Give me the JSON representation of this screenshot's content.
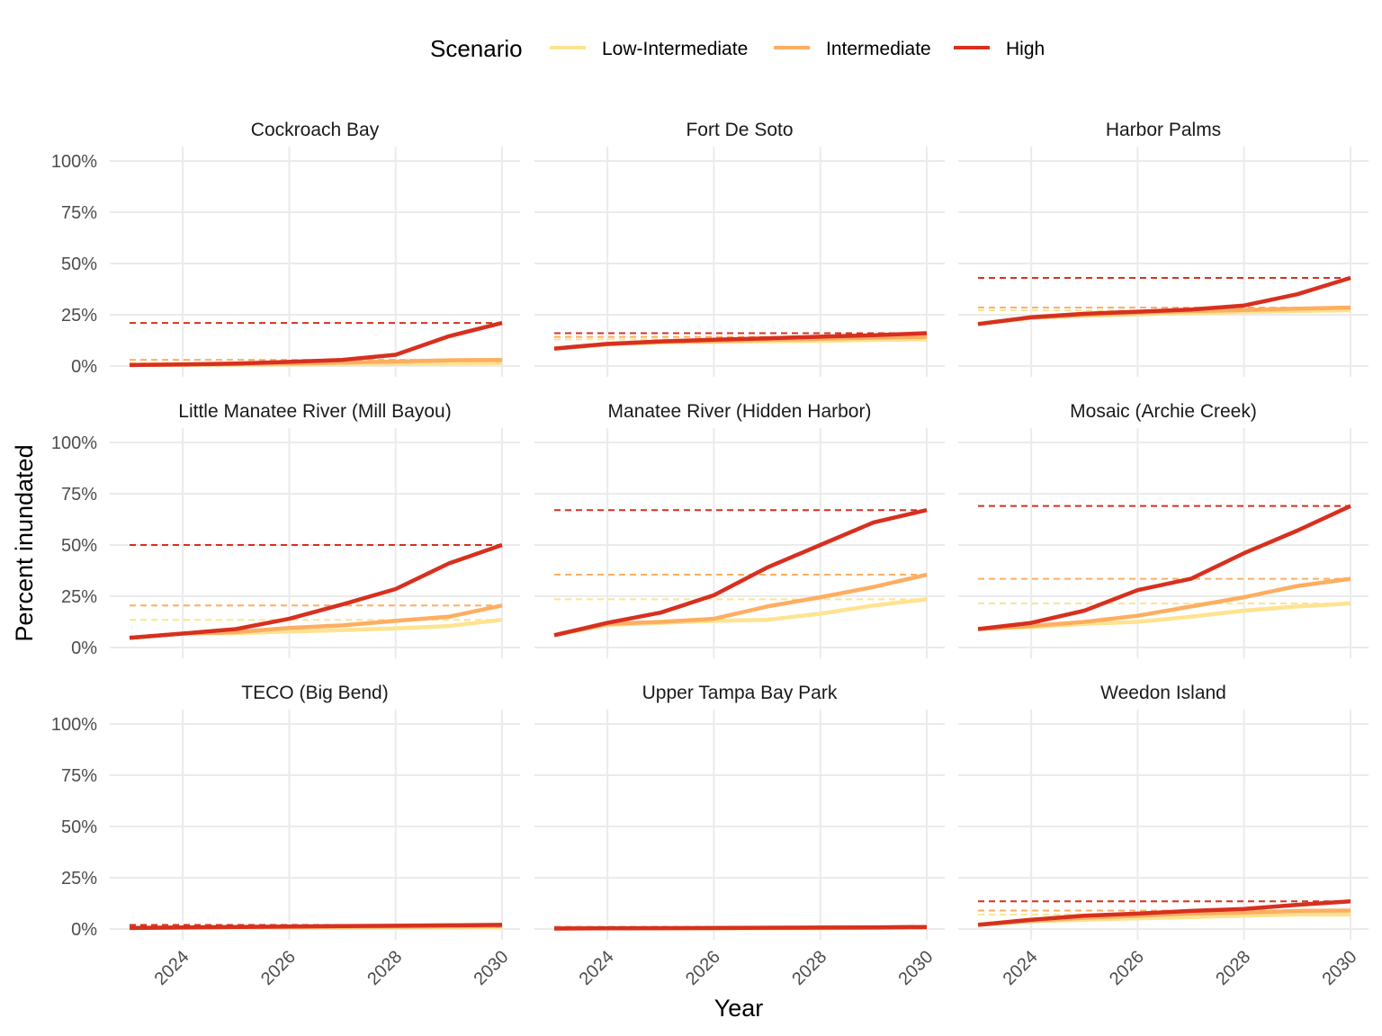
{
  "legend": {
    "title": "Scenario",
    "items": [
      {
        "label": "Low-Intermediate",
        "color": "#fee391"
      },
      {
        "label": "Intermediate",
        "color": "#fdae61"
      },
      {
        "label": "High",
        "color": "#d7301f"
      }
    ]
  },
  "chart_data": {
    "type": "line",
    "xlabel": "Year",
    "ylabel": "Percent inundated",
    "x_ticks": [
      "2024",
      "2026",
      "2028",
      "2030"
    ],
    "y_ticks": [
      "0%",
      "25%",
      "50%",
      "75%",
      "100%"
    ],
    "xlim": [
      2023,
      2030
    ],
    "ylim": [
      0,
      100
    ],
    "x": [
      2023,
      2024,
      2025,
      2026,
      2027,
      2028,
      2029,
      2030
    ],
    "grid": true,
    "legend_position": "top",
    "reference_lines": "dashed horizontal line per scenario at the 2030 value",
    "panels": [
      {
        "title": "Cockroach Bay",
        "series": [
          {
            "name": "Low-Intermediate",
            "values": [
              0.5,
              0.6,
              0.7,
              0.8,
              0.9,
              1.0,
              1.2,
              1.5
            ]
          },
          {
            "name": "Intermediate",
            "values": [
              0.5,
              0.7,
              0.9,
              1.2,
              1.7,
              2.2,
              2.8,
              3.0
            ]
          },
          {
            "name": "High",
            "values": [
              0.5,
              0.8,
              1.2,
              2.0,
              3.0,
              5.5,
              14.5,
              21.0
            ]
          }
        ]
      },
      {
        "title": "Fort De Soto",
        "series": [
          {
            "name": "Low-Intermediate",
            "values": [
              8.5,
              10.5,
              11.5,
              11.8,
              12.0,
              12.3,
              12.7,
              13.0
            ]
          },
          {
            "name": "Intermediate",
            "values": [
              8.5,
              10.6,
              11.7,
              12.2,
              12.8,
              13.3,
              13.8,
              14.2
            ]
          },
          {
            "name": "High",
            "values": [
              8.5,
              10.8,
              12.0,
              12.8,
              13.5,
              14.3,
              15.0,
              16.0
            ]
          }
        ]
      },
      {
        "title": "Harbor Palms",
        "series": [
          {
            "name": "Low-Intermediate",
            "values": [
              20.5,
              23.5,
              24.5,
              25.2,
              25.8,
              26.3,
              26.8,
              27.2
            ]
          },
          {
            "name": "Intermediate",
            "values": [
              20.5,
              23.5,
              25.0,
              26.0,
              26.8,
              27.3,
              28.0,
              28.5
            ]
          },
          {
            "name": "High",
            "values": [
              20.5,
              23.8,
              25.5,
              26.5,
              27.5,
              29.5,
              35.0,
              43.0
            ]
          }
        ]
      },
      {
        "title": "Little Manatee River (Mill Bayou)",
        "series": [
          {
            "name": "Low-Intermediate",
            "values": [
              4.7,
              6.8,
              7.0,
              7.8,
              8.5,
              9.3,
              10.5,
              13.5
            ]
          },
          {
            "name": "Intermediate",
            "values": [
              4.7,
              6.8,
              7.5,
              9.5,
              10.8,
              13.0,
              15.0,
              20.5
            ]
          },
          {
            "name": "High",
            "values": [
              4.7,
              6.8,
              9.0,
              14.0,
              21.0,
              28.5,
              41.0,
              50.0
            ]
          }
        ]
      },
      {
        "title": "Manatee River (Hidden Harbor)",
        "series": [
          {
            "name": "Low-Intermediate",
            "values": [
              6.0,
              11.0,
              12.0,
              13.0,
              13.5,
              16.5,
              20.5,
              23.5
            ]
          },
          {
            "name": "Intermediate",
            "values": [
              6.0,
              11.5,
              12.5,
              14.0,
              20.0,
              24.5,
              29.5,
              35.5
            ]
          },
          {
            "name": "High",
            "values": [
              6.0,
              12.0,
              17.0,
              25.5,
              39.0,
              50.0,
              61.0,
              67.0
            ]
          }
        ]
      },
      {
        "title": "Mosaic (Archie Creek)",
        "series": [
          {
            "name": "Low-Intermediate",
            "values": [
              9.0,
              10.0,
              11.5,
              12.5,
              15.0,
              18.0,
              20.0,
              21.5
            ]
          },
          {
            "name": "Intermediate",
            "values": [
              9.0,
              10.5,
              12.5,
              15.5,
              20.0,
              24.5,
              30.0,
              33.5
            ]
          },
          {
            "name": "High",
            "values": [
              9.0,
              12.0,
              18.0,
              28.0,
              33.5,
              46.0,
              57.0,
              69.0
            ]
          }
        ]
      },
      {
        "title": "TECO (Big Bend)",
        "series": [
          {
            "name": "Low-Intermediate",
            "values": [
              0.5,
              0.6,
              0.7,
              0.8,
              0.8,
              0.9,
              1.0,
              1.0
            ]
          },
          {
            "name": "Intermediate",
            "values": [
              0.5,
              0.7,
              0.9,
              1.0,
              1.1,
              1.2,
              1.3,
              1.5
            ]
          },
          {
            "name": "High",
            "values": [
              0.5,
              0.8,
              1.0,
              1.2,
              1.4,
              1.6,
              1.8,
              2.0
            ]
          }
        ]
      },
      {
        "title": "Upper Tampa Bay Park",
        "series": [
          {
            "name": "Low-Intermediate",
            "values": [
              0.2,
              0.3,
              0.3,
              0.4,
              0.4,
              0.4,
              0.5,
              0.5
            ]
          },
          {
            "name": "Intermediate",
            "values": [
              0.2,
              0.3,
              0.3,
              0.4,
              0.5,
              0.5,
              0.6,
              0.7
            ]
          },
          {
            "name": "High",
            "values": [
              0.2,
              0.3,
              0.4,
              0.5,
              0.6,
              0.7,
              0.8,
              1.0
            ]
          }
        ]
      },
      {
        "title": "Weedon Island",
        "series": [
          {
            "name": "Low-Intermediate",
            "values": [
              2.0,
              3.8,
              4.5,
              5.2,
              5.8,
              6.5,
              7.0,
              7.0
            ]
          },
          {
            "name": "Intermediate",
            "values": [
              2.0,
              4.0,
              5.5,
              6.5,
              7.5,
              8.0,
              8.8,
              9.0
            ]
          },
          {
            "name": "High",
            "values": [
              2.0,
              4.5,
              6.5,
              7.5,
              8.8,
              9.8,
              11.8,
              13.5
            ]
          }
        ]
      }
    ]
  }
}
